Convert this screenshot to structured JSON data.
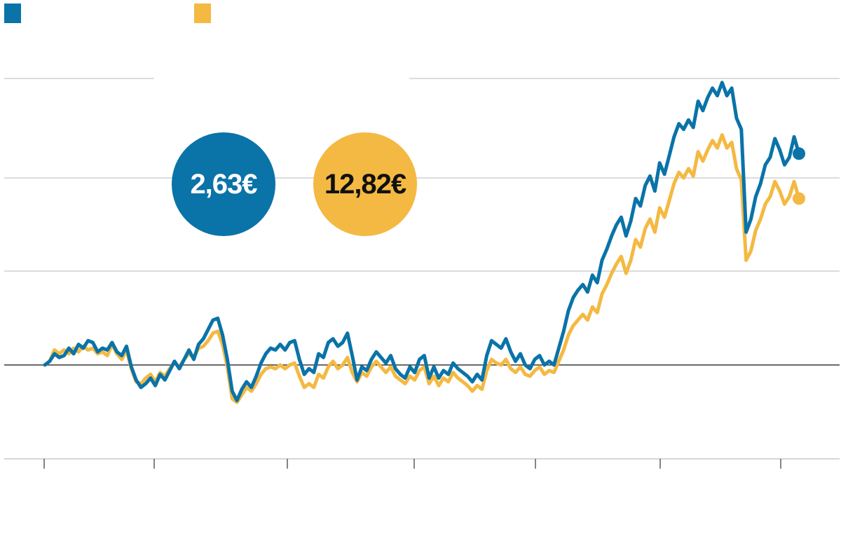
{
  "colors": {
    "series_a": "#0a73a8",
    "series_b": "#f4b942",
    "overlap": "#1f5a2a",
    "grid": "#c8c8c8"
  },
  "bubbles": {
    "series_a_value": "2,63€",
    "series_b_value": "12,82€"
  },
  "chart_data": {
    "type": "line",
    "grid": true,
    "baseline_y": 1.0,
    "ylim": [
      0.5,
      2.6
    ],
    "x_ticks": 7,
    "series": [
      {
        "color": "#0a73a8",
        "values": [
          1.0,
          1.02,
          1.06,
          1.04,
          1.05,
          1.09,
          1.06,
          1.11,
          1.09,
          1.13,
          1.12,
          1.07,
          1.09,
          1.08,
          1.12,
          1.07,
          1.05,
          1.1,
          0.99,
          0.92,
          0.88,
          0.9,
          0.93,
          0.89,
          0.95,
          0.92,
          0.97,
          1.02,
          0.98,
          1.03,
          1.08,
          1.03,
          1.11,
          1.14,
          1.19,
          1.24,
          1.25,
          1.16,
          1.03,
          0.86,
          0.81,
          0.87,
          0.91,
          0.88,
          0.94,
          1.01,
          1.06,
          1.09,
          1.08,
          1.11,
          1.08,
          1.12,
          1.13,
          1.03,
          0.95,
          0.98,
          0.96,
          1.06,
          1.04,
          1.12,
          1.14,
          1.1,
          1.12,
          1.17,
          1.05,
          0.92,
          0.99,
          0.97,
          1.03,
          1.07,
          1.04,
          1.01,
          1.05,
          0.98,
          0.95,
          0.93,
          0.99,
          0.96,
          1.03,
          1.05,
          0.93,
          0.99,
          0.93,
          0.97,
          0.95,
          1.01,
          0.98,
          0.96,
          0.94,
          0.91,
          0.95,
          0.92,
          1.05,
          1.13,
          1.11,
          1.09,
          1.14,
          1.07,
          1.02,
          1.06,
          1.0,
          0.98,
          1.03,
          1.05,
          1.0,
          1.02,
          1.0,
          1.09,
          1.18,
          1.29,
          1.36,
          1.4,
          1.43,
          1.39,
          1.48,
          1.44,
          1.56,
          1.62,
          1.69,
          1.75,
          1.79,
          1.69,
          1.77,
          1.89,
          1.85,
          1.96,
          2.01,
          1.93,
          2.08,
          2.02,
          2.12,
          2.22,
          2.29,
          2.26,
          2.31,
          2.27,
          2.41,
          2.36,
          2.43,
          2.48,
          2.44,
          2.51,
          2.44,
          2.48,
          2.32,
          2.26,
          1.71,
          1.78,
          1.9,
          1.97,
          2.07,
          2.11,
          2.21,
          2.15,
          2.07,
          2.11,
          2.22,
          2.13
        ]
      },
      {
        "color": "#f4b942",
        "values": [
          1.0,
          1.02,
          1.08,
          1.06,
          1.08,
          1.06,
          1.09,
          1.07,
          1.1,
          1.08,
          1.09,
          1.06,
          1.07,
          1.05,
          1.11,
          1.06,
          1.03,
          1.08,
          0.98,
          0.91,
          0.9,
          0.93,
          0.95,
          0.91,
          0.96,
          0.94,
          0.98,
          1.01,
          0.99,
          1.03,
          1.06,
          1.04,
          1.09,
          1.1,
          1.13,
          1.17,
          1.18,
          1.11,
          0.99,
          0.82,
          0.8,
          0.84,
          0.88,
          0.86,
          0.9,
          0.95,
          0.98,
          0.99,
          0.98,
          1.0,
          0.98,
          1.0,
          1.01,
          0.94,
          0.88,
          0.9,
          0.88,
          0.95,
          0.93,
          0.99,
          1.02,
          0.98,
          1.0,
          1.04,
          0.96,
          0.91,
          0.96,
          0.94,
          0.99,
          1.02,
          0.99,
          0.96,
          0.99,
          0.94,
          0.92,
          0.9,
          0.94,
          0.92,
          0.97,
          0.99,
          0.9,
          0.94,
          0.89,
          0.93,
          0.91,
          0.96,
          0.93,
          0.91,
          0.89,
          0.86,
          0.89,
          0.87,
          0.97,
          1.03,
          1.01,
          1.0,
          1.03,
          0.98,
          0.96,
          0.99,
          0.95,
          0.94,
          0.97,
          0.99,
          0.95,
          0.97,
          0.96,
          1.02,
          1.08,
          1.16,
          1.21,
          1.24,
          1.27,
          1.24,
          1.31,
          1.28,
          1.38,
          1.43,
          1.49,
          1.54,
          1.58,
          1.49,
          1.56,
          1.67,
          1.63,
          1.73,
          1.78,
          1.71,
          1.84,
          1.79,
          1.88,
          1.97,
          2.03,
          2.0,
          2.05,
          2.01,
          2.14,
          2.09,
          2.15,
          2.2,
          2.16,
          2.23,
          2.16,
          2.19,
          2.05,
          1.99,
          1.56,
          1.61,
          1.72,
          1.78,
          1.86,
          1.9,
          1.98,
          1.93,
          1.86,
          1.9,
          1.98,
          1.89
        ]
      }
    ]
  }
}
